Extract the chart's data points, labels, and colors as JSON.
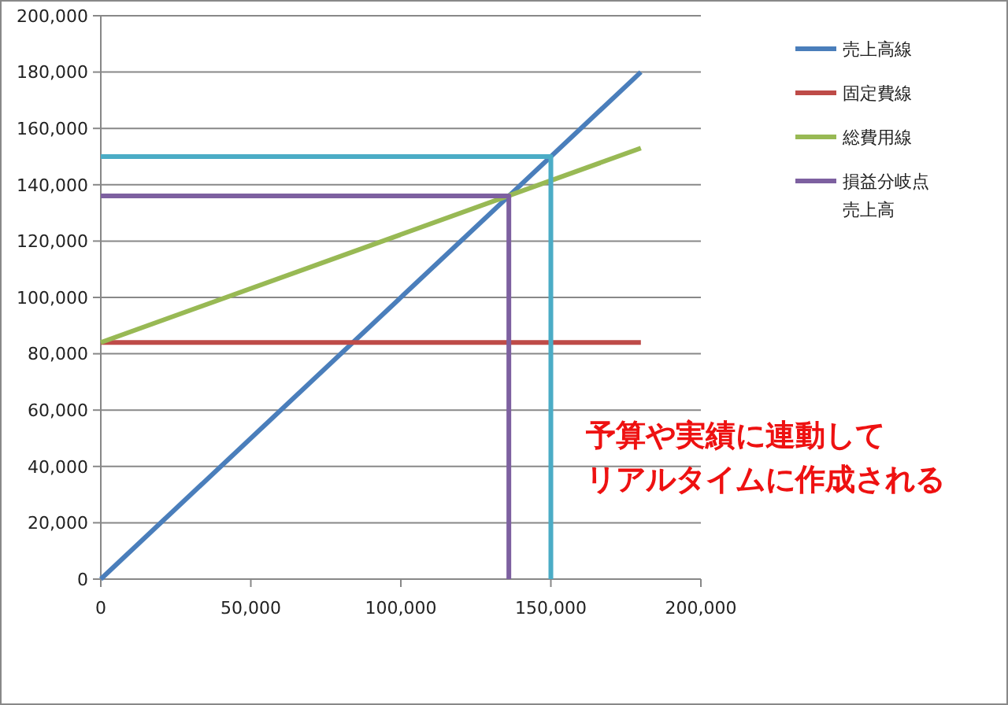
{
  "chart_data": {
    "type": "line",
    "xlim": [
      0,
      200000
    ],
    "ylim": [
      0,
      200000
    ],
    "xticks": [
      {
        "value": 0,
        "label": "0"
      },
      {
        "value": 50000,
        "label": "50,000"
      },
      {
        "value": 100000,
        "label": "100,000"
      },
      {
        "value": 150000,
        "label": "150,000"
      },
      {
        "value": 200000,
        "label": "200,000"
      }
    ],
    "yticks": [
      {
        "value": 0,
        "label": "0"
      },
      {
        "value": 20000,
        "label": "20,000"
      },
      {
        "value": 40000,
        "label": "40,000"
      },
      {
        "value": 60000,
        "label": "60,000"
      },
      {
        "value": 80000,
        "label": "80,000"
      },
      {
        "value": 100000,
        "label": "100,000"
      },
      {
        "value": 120000,
        "label": "120,000"
      },
      {
        "value": 140000,
        "label": "140,000"
      },
      {
        "value": 160000,
        "label": "160,000"
      },
      {
        "value": 180000,
        "label": "180,000"
      },
      {
        "value": 200000,
        "label": "200,000"
      }
    ],
    "grid": "y",
    "legend": "right",
    "marker": "none",
    "line_style": "solid",
    "series": [
      {
        "name": "売上高線",
        "color": "#4a7ebb",
        "x": [
          0,
          180000
        ],
        "values": [
          0,
          180000
        ]
      },
      {
        "name": "固定費線",
        "color": "#be4b48",
        "x": [
          0,
          180000
        ],
        "values": [
          84000,
          84000
        ]
      },
      {
        "name": "総費用線",
        "color": "#98b954",
        "x": [
          0,
          180000
        ],
        "values": [
          84000,
          153000
        ]
      },
      {
        "name": "損益分岐点売上高",
        "color": "#7d60a0",
        "x": [
          0,
          136000,
          136000
        ],
        "values": [
          136000,
          136000,
          0
        ]
      },
      {
        "color": "#4bacc6",
        "x": [
          0,
          150000,
          150000
        ],
        "values": [
          150000,
          150000,
          0
        ]
      }
    ],
    "annotations": [
      "予算や実績に連動して",
      "リアルタイムに作成される"
    ]
  }
}
